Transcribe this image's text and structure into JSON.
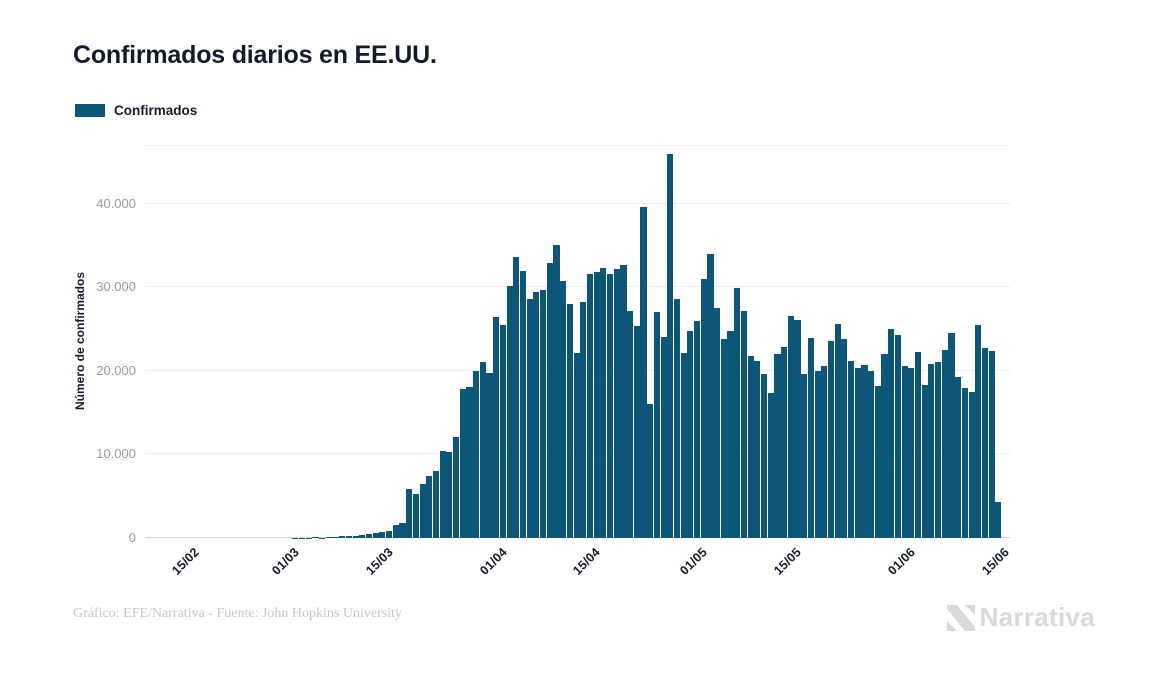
{
  "header": {
    "title": "Confirmados diarios en EE.UU."
  },
  "legend": {
    "label": "Confirmados",
    "color": "#0b5679"
  },
  "footer": {
    "credit": "Gráfico: EFE/Narrativa - Fuente: John Hopkins University",
    "brand": "Narrativa"
  },
  "chart_data": {
    "type": "bar",
    "title": "Confirmados diarios en EE.UU.",
    "ylabel": "Número de confirmados",
    "series_name": "Confirmados",
    "bar_color": "#0b5679",
    "grid": true,
    "legend_position": "top-left",
    "ylim": [
      0,
      46900
    ],
    "y_ticks": [
      {
        "value": 0,
        "label": "0"
      },
      {
        "value": 10000,
        "label": "10.000"
      },
      {
        "value": 20000,
        "label": "20.000"
      },
      {
        "value": 30000,
        "label": "30.000"
      },
      {
        "value": 40000,
        "label": "40.000"
      }
    ],
    "x_ticks": [
      "15/02",
      "01/03",
      "15/03",
      "01/04",
      "15/04",
      "01/05",
      "15/05",
      "01/06",
      "15/06"
    ],
    "x_dates": [
      "09/02",
      "10/02",
      "11/02",
      "12/02",
      "13/02",
      "14/02",
      "15/02",
      "16/02",
      "17/02",
      "18/02",
      "19/02",
      "20/02",
      "21/02",
      "22/02",
      "23/02",
      "24/02",
      "25/02",
      "26/02",
      "27/02",
      "28/02",
      "29/02",
      "01/03",
      "02/03",
      "03/03",
      "04/03",
      "05/03",
      "06/03",
      "07/03",
      "08/03",
      "09/03",
      "10/03",
      "11/03",
      "12/03",
      "13/03",
      "14/03",
      "15/03",
      "16/03",
      "17/03",
      "18/03",
      "19/03",
      "20/03",
      "21/03",
      "22/03",
      "23/03",
      "24/03",
      "25/03",
      "26/03",
      "27/03",
      "28/03",
      "29/03",
      "30/03",
      "31/03",
      "01/04",
      "02/04",
      "03/04",
      "04/04",
      "05/04",
      "06/04",
      "07/04",
      "08/04",
      "09/04",
      "10/04",
      "11/04",
      "12/04",
      "13/04",
      "14/04",
      "15/04",
      "16/04",
      "17/04",
      "18/04",
      "19/04",
      "20/04",
      "21/04",
      "22/04",
      "23/04",
      "24/04",
      "25/04",
      "26/04",
      "27/04",
      "28/04",
      "29/04",
      "30/04",
      "01/05",
      "02/05",
      "03/05",
      "04/05",
      "05/05",
      "06/05",
      "07/05",
      "08/05",
      "09/05",
      "10/05",
      "11/05",
      "12/05",
      "13/05",
      "14/05",
      "15/05",
      "16/05",
      "17/05",
      "18/05",
      "19/05",
      "20/05",
      "21/05",
      "22/05",
      "23/05",
      "24/05",
      "25/05",
      "26/05",
      "27/05",
      "28/05",
      "29/05",
      "30/05",
      "31/05",
      "01/06",
      "02/06",
      "03/06",
      "04/06",
      "05/06",
      "06/06",
      "07/06",
      "08/06",
      "09/06",
      "10/06",
      "11/06",
      "12/06",
      "13/06",
      "14/06",
      "15/06"
    ],
    "values": [
      2,
      1,
      0,
      1,
      2,
      1,
      0,
      0,
      1,
      2,
      0,
      1,
      0,
      0,
      1,
      0,
      6,
      1,
      4,
      0,
      8,
      7,
      24,
      20,
      31,
      70,
      60,
      110,
      120,
      200,
      270,
      290,
      350,
      510,
      550,
      770,
      890,
      1560,
      1840,
      5900,
      5230,
      6420,
      7420,
      8020,
      10400,
      10330,
      12090,
      17800,
      18070,
      20000,
      21000,
      19800,
      26430,
      25440,
      30140,
      33610,
      31930,
      28550,
      29460,
      29620,
      32930,
      35040,
      30730,
      28020,
      22160,
      28230,
      31530,
      31850,
      32250,
      31620,
      32150,
      32620,
      27160,
      25360,
      39600,
      15990,
      27080,
      24040,
      45900,
      28630,
      22170,
      24760,
      26000,
      31000,
      33940,
      27550,
      23800,
      24800,
      29950,
      27160,
      21770,
      21180,
      19580,
      17390,
      22050,
      22850,
      26560,
      26040,
      19580,
      23970,
      20000,
      20580,
      23570,
      25640,
      23770,
      21180,
      20380,
      20700,
      20000,
      18230,
      21970,
      24960,
      24260,
      20600,
      20300,
      22300,
      18340,
      20790,
      21000,
      22450,
      24500,
      19260,
      17910,
      17500,
      25500,
      22690,
      22370,
      4310
    ]
  }
}
